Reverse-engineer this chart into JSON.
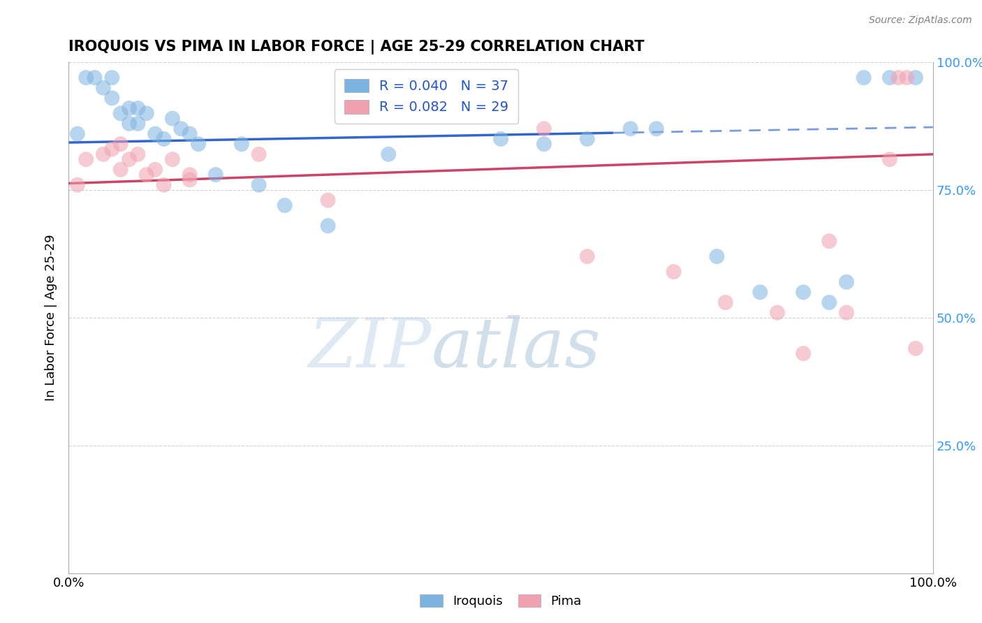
{
  "title": "IROQUOIS VS PIMA IN LABOR FORCE | AGE 25-29 CORRELATION CHART",
  "source_text": "Source: ZipAtlas.com",
  "ylabel": "In Labor Force | Age 25-29",
  "xlim": [
    0.0,
    1.0
  ],
  "ylim": [
    0.0,
    1.0
  ],
  "iroquois_color": "#7db3e0",
  "pima_color": "#f0a0b0",
  "trend_blue": "#3366cc",
  "trend_pink": "#cc4466",
  "R_iroquois": 0.04,
  "N_iroquois": 37,
  "R_pima": 0.082,
  "N_pima": 29,
  "iroquois_x": [
    0.01,
    0.02,
    0.03,
    0.04,
    0.05,
    0.05,
    0.06,
    0.07,
    0.07,
    0.08,
    0.08,
    0.09,
    0.1,
    0.11,
    0.12,
    0.13,
    0.14,
    0.15,
    0.17,
    0.2,
    0.22,
    0.25,
    0.3,
    0.37,
    0.5,
    0.55,
    0.6,
    0.65,
    0.68,
    0.75,
    0.8,
    0.85,
    0.88,
    0.9,
    0.92,
    0.95,
    0.98
  ],
  "iroquois_y": [
    0.86,
    0.97,
    0.97,
    0.95,
    0.97,
    0.93,
    0.9,
    0.91,
    0.88,
    0.91,
    0.88,
    0.9,
    0.86,
    0.85,
    0.89,
    0.87,
    0.86,
    0.84,
    0.78,
    0.84,
    0.76,
    0.72,
    0.68,
    0.82,
    0.85,
    0.84,
    0.85,
    0.87,
    0.87,
    0.62,
    0.55,
    0.55,
    0.53,
    0.57,
    0.97,
    0.97,
    0.97
  ],
  "pima_x": [
    0.01,
    0.02,
    0.04,
    0.05,
    0.06,
    0.06,
    0.07,
    0.08,
    0.09,
    0.1,
    0.11,
    0.12,
    0.14,
    0.14,
    0.22,
    0.3,
    0.44,
    0.55,
    0.6,
    0.7,
    0.76,
    0.82,
    0.85,
    0.88,
    0.9,
    0.95,
    0.96,
    0.97,
    0.98
  ],
  "pima_y": [
    0.76,
    0.81,
    0.82,
    0.83,
    0.84,
    0.79,
    0.81,
    0.82,
    0.78,
    0.79,
    0.76,
    0.81,
    0.77,
    0.78,
    0.82,
    0.73,
    0.92,
    0.87,
    0.62,
    0.59,
    0.53,
    0.51,
    0.43,
    0.65,
    0.51,
    0.81,
    0.97,
    0.97,
    0.44
  ],
  "watermark_zip": "ZIP",
  "watermark_atlas": "atlas",
  "background_color": "#ffffff",
  "grid_color": "#cccccc",
  "trend_blue_start_y": 0.843,
  "trend_blue_end_y": 0.873,
  "trend_pink_start_y": 0.763,
  "trend_pink_end_y": 0.82
}
